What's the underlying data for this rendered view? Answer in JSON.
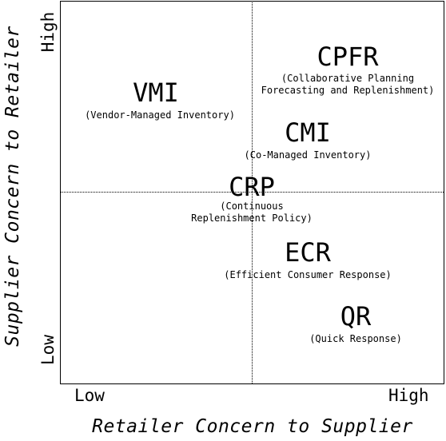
{
  "axes": {
    "x_label": "Retailer Concern to Supplier",
    "y_label": "Supplier Concern to Retailer",
    "x_low": "Low",
    "x_high": "High",
    "y_low": "Low",
    "y_high": "High"
  },
  "items": {
    "cpfr": {
      "abbr": "CPFR",
      "full": "(Collaborative Planning\nForecasting and Replenishment)"
    },
    "vmi": {
      "abbr": "VMI",
      "full": "(Vendor-Managed Inventory)"
    },
    "cmi": {
      "abbr": "CMI",
      "full": "(Co-Managed Inventory)"
    },
    "crp": {
      "abbr": "CRP",
      "full": "(Continuous\nReplenishment Policy)"
    },
    "ecr": {
      "abbr": "ECR",
      "full": "(Efficient Consumer Response)"
    },
    "qr": {
      "abbr": "QR",
      "full": "(Quick Response)"
    }
  }
}
